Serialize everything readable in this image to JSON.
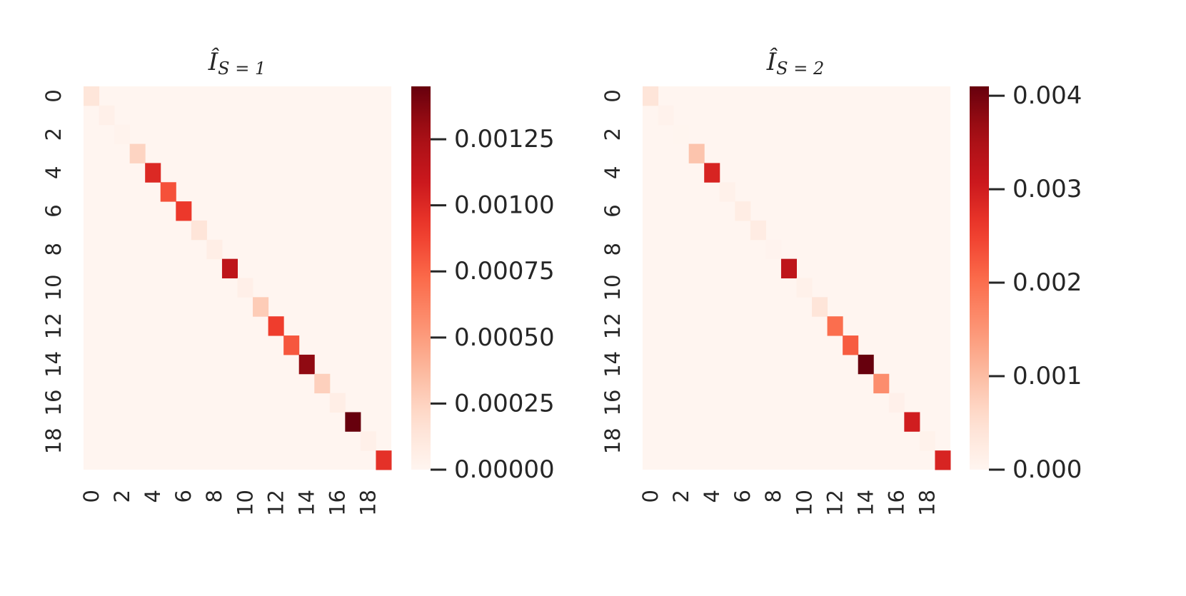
{
  "chart_data": [
    {
      "type": "heatmap",
      "title_main": "Î",
      "title_sub": "S = 1",
      "rows": 20,
      "cols": 20,
      "x_tick_labels": [
        "0",
        "2",
        "4",
        "6",
        "8",
        "10",
        "12",
        "14",
        "16",
        "18"
      ],
      "y_tick_labels": [
        "0",
        "2",
        "4",
        "6",
        "8",
        "10",
        "12",
        "14",
        "16",
        "18"
      ],
      "colormap": "Reds",
      "vmin": 0,
      "vmax": 0.00145,
      "colorbar_ticks": [
        "0.00000",
        "0.00025",
        "0.00050",
        "0.00075",
        "0.00100",
        "0.00125"
      ],
      "diagonal_values": [
        0.00013,
        4e-05,
        2e-05,
        0.00024,
        0.001,
        0.00082,
        0.00092,
        0.00014,
        6e-05,
        0.00115,
        5e-05,
        0.00028,
        0.0009,
        0.0008,
        0.00133,
        0.00026,
        6e-05,
        0.00145,
        4e-05,
        0.00096
      ],
      "off_diagonal_value": 0
    },
    {
      "type": "heatmap",
      "title_main": "Î",
      "title_sub": "S = 2",
      "rows": 20,
      "cols": 20,
      "x_tick_labels": [
        "0",
        "2",
        "4",
        "6",
        "8",
        "10",
        "12",
        "14",
        "16",
        "18"
      ],
      "y_tick_labels": [
        "0",
        "2",
        "4",
        "6",
        "8",
        "10",
        "12",
        "14",
        "16",
        "18"
      ],
      "colormap": "Reds",
      "vmin": 0,
      "vmax": 0.0041,
      "colorbar_ticks": [
        "0.000",
        "0.001",
        "0.002",
        "0.003",
        "0.004"
      ],
      "diagonal_values": [
        0.0004,
        7e-05,
        1e-05,
        0.0009,
        0.0029,
        0.0001,
        0.0002,
        0.00023,
        4e-05,
        0.00325,
        0.0001,
        0.0004,
        0.002,
        0.0022,
        0.0041,
        0.0016,
        0.00011,
        0.003,
        8e-05,
        0.0029
      ],
      "off_diagonal_value": 0
    }
  ]
}
